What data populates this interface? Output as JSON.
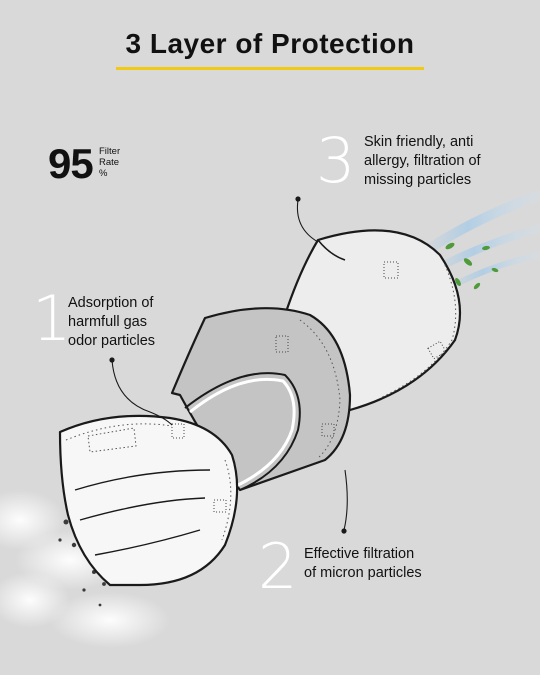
{
  "title": "3 Layer of Protection",
  "colors": {
    "background": "#d9d9d9",
    "accent_underline": "#f2c913",
    "numerals": "#ffffff"
  },
  "filter": {
    "value": "95",
    "words": [
      "Filter",
      "Rate",
      "%"
    ]
  },
  "layers": [
    {
      "number": "1",
      "text": "Adsorption of\nharmfull gas\nodor particles"
    },
    {
      "number": "2",
      "text": "Effective filtration\nof micron particles"
    },
    {
      "number": "3",
      "text": "Skin friendly, anti\nallergy, filtration of\nmissing particles"
    }
  ],
  "icons": [
    "mask-outer-layer",
    "mask-middle-layer",
    "mask-inner-layer",
    "leaf-icon",
    "dust-particles-icon",
    "callout-pointer"
  ]
}
